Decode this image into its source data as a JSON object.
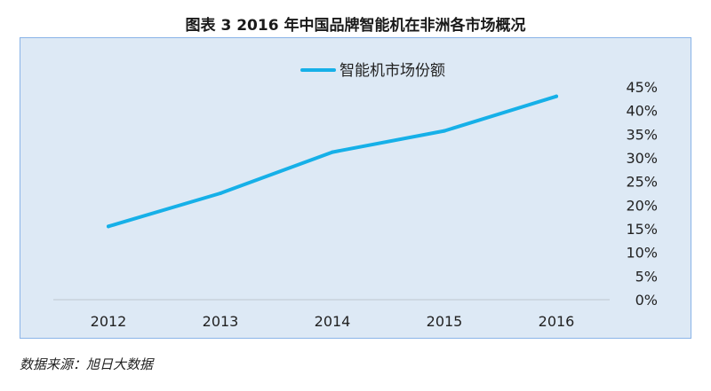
{
  "figure_title": "图表 3    2016 年中国品牌智能机在非洲各市场概况",
  "source_note": "数据来源：旭日大数据",
  "colors": {
    "line": "#16b0e8",
    "box_bg": "#dde9f5",
    "box_border": "#8ab4e8"
  },
  "chart_data": {
    "type": "line",
    "title": "",
    "x": [
      "2012",
      "2013",
      "2014",
      "2015",
      "2016"
    ],
    "series": [
      {
        "name": "智能机市场份额",
        "values": [
          15.5,
          22.5,
          31.2,
          35.7,
          43.0
        ]
      }
    ],
    "yticks": [
      "0%",
      "5%",
      "10%",
      "15%",
      "20%",
      "25%",
      "30%",
      "35%",
      "40%",
      "45%"
    ],
    "ylim": [
      0,
      45
    ],
    "y_axis_position": "right",
    "legend_position": "top-center",
    "grid": false
  }
}
